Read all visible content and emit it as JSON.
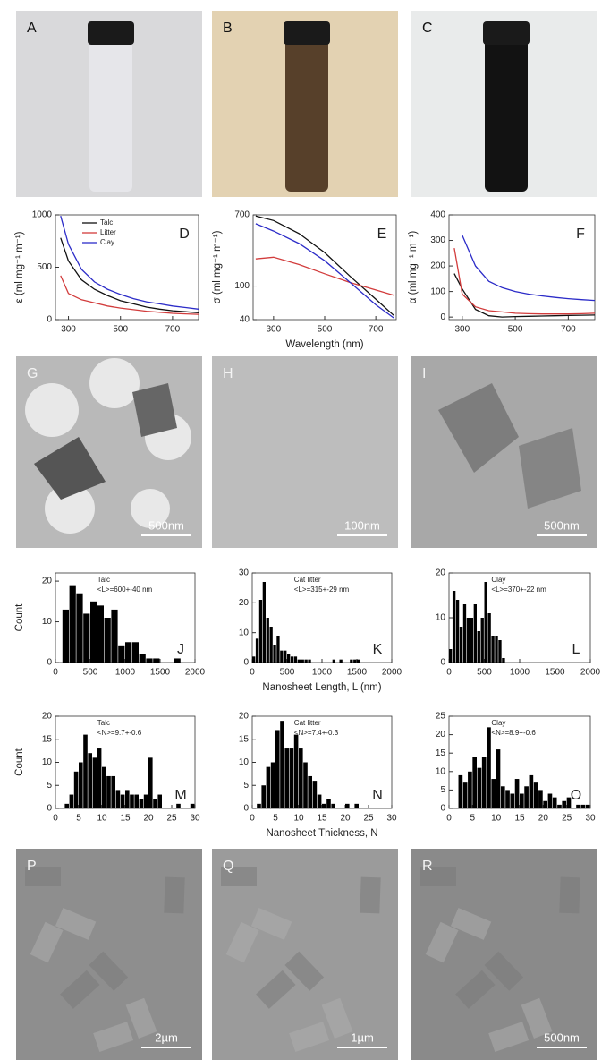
{
  "images": [
    {
      "panel": "A"
    },
    {
      "panel": "B"
    },
    {
      "panel": "C"
    },
    {
      "panel": "G",
      "scale_bar": "500nm"
    },
    {
      "panel": "H",
      "scale_bar": "100nm"
    },
    {
      "panel": "I",
      "scale_bar": "500nm"
    },
    {
      "panel": "P",
      "scale_bar": "2µm"
    },
    {
      "panel": "Q",
      "scale_bar": "1µm"
    },
    {
      "panel": "R",
      "scale_bar": "500nm"
    }
  ],
  "chart_data": [
    {
      "type": "line",
      "panel": "D",
      "y_label": "ε (ml mg⁻¹ m⁻¹)",
      "xlim": [
        250,
        800
      ],
      "xticks": [
        300,
        500,
        700
      ],
      "ylim": [
        0,
        1000
      ],
      "yticks": [
        0,
        500,
        1000
      ],
      "legend": "upper left",
      "x": [
        270,
        300,
        350,
        400,
        450,
        500,
        550,
        600,
        650,
        700,
        750,
        800
      ],
      "series": [
        {
          "name": "Talc",
          "color": "#111111",
          "values": [
            780,
            560,
            380,
            290,
            230,
            180,
            150,
            120,
            100,
            85,
            75,
            65
          ]
        },
        {
          "name": "Litter",
          "color": "#d23c3c",
          "values": [
            420,
            250,
            190,
            160,
            130,
            110,
            95,
            80,
            70,
            60,
            55,
            50
          ]
        },
        {
          "name": "Clay",
          "color": "#2c2cc8",
          "values": [
            990,
            720,
            480,
            360,
            290,
            240,
            200,
            170,
            150,
            130,
            115,
            100
          ]
        }
      ]
    },
    {
      "type": "line",
      "panel": "E",
      "y_label": "σ (ml mg⁻¹ m⁻¹)",
      "x_label": "Wavelength (nm)",
      "log_y": true,
      "xlim": [
        220,
        780
      ],
      "xticks": [
        300,
        500,
        700
      ],
      "ylim": [
        40,
        700
      ],
      "yticks": [
        40,
        100,
        700
      ],
      "x": [
        230,
        300,
        400,
        500,
        600,
        700,
        770
      ],
      "series": [
        {
          "color": "#111111",
          "values": [
            680,
            600,
            420,
            250,
            130,
            70,
            45
          ]
        },
        {
          "color": "#d23c3c",
          "values": [
            210,
            220,
            180,
            140,
            110,
            90,
            78
          ]
        },
        {
          "color": "#2c2cc8",
          "values": [
            550,
            450,
            320,
            200,
            110,
            60,
            42
          ]
        }
      ]
    },
    {
      "type": "line",
      "panel": "F",
      "y_label": "α (ml mg⁻¹ m⁻¹)",
      "xlim": [
        250,
        800
      ],
      "xticks": [
        300,
        500,
        700
      ],
      "ylim": [
        -10,
        400
      ],
      "yticks": [
        0,
        100,
        200,
        300,
        400
      ],
      "x": [
        270,
        300,
        350,
        400,
        450,
        500,
        550,
        600,
        650,
        700,
        750,
        800
      ],
      "series": [
        {
          "color": "#111111",
          "values": [
            170,
            110,
            30,
            5,
            0,
            2,
            3,
            4,
            5,
            6,
            7,
            8
          ]
        },
        {
          "color": "#d23c3c",
          "values": [
            270,
            90,
            40,
            25,
            20,
            15,
            13,
            12,
            12,
            12,
            13,
            15
          ]
        },
        {
          "color": "#2c2cc8",
          "values": [
            null,
            320,
            200,
            140,
            115,
            100,
            90,
            83,
            77,
            72,
            68,
            65
          ]
        }
      ]
    },
    {
      "type": "histogram",
      "panel": "J",
      "y_label": "Count",
      "annotations": [
        "Talc",
        "<L>=600+-40 nm"
      ],
      "color": "#000000",
      "xlim": [
        0,
        2000
      ],
      "xticks": [
        0,
        500,
        1000,
        1500,
        2000
      ],
      "ylim": [
        0,
        22
      ],
      "yticks": [
        0,
        10,
        20
      ],
      "bins": [
        0,
        100,
        200,
        300,
        400,
        500,
        600,
        700,
        800,
        900,
        1000,
        1100,
        1200,
        1300,
        1400,
        1500,
        1600,
        1700,
        1800,
        1900
      ],
      "values": [
        0,
        13,
        19,
        17,
        12,
        15,
        14,
        11,
        13,
        4,
        5,
        5,
        2,
        1,
        1,
        0,
        0,
        1,
        0
      ]
    },
    {
      "type": "histogram",
      "panel": "K",
      "x_label": "Nanosheet Length, L (nm)",
      "annotations": [
        "Cat litter",
        "<L>=315+-29 nm"
      ],
      "color": "#000000",
      "xlim": [
        0,
        2000
      ],
      "xticks": [
        0,
        500,
        1000,
        1500,
        2000
      ],
      "ylim": [
        0,
        30
      ],
      "yticks": [
        0,
        10,
        20,
        30
      ],
      "bins": [
        0,
        50,
        100,
        150,
        200,
        250,
        300,
        350,
        400,
        450,
        500,
        550,
        600,
        650,
        700,
        750,
        800,
        850,
        900,
        950,
        1000,
        1050,
        1100,
        1150,
        1200,
        1250,
        1300,
        1350,
        1400,
        1450,
        1500,
        1550,
        1600
      ],
      "values": [
        2,
        8,
        21,
        27,
        15,
        12,
        6,
        9,
        4,
        4,
        3,
        2,
        2,
        1,
        1,
        1,
        1,
        0,
        0,
        0,
        0,
        0,
        0,
        1,
        0,
        1,
        0,
        0,
        1,
        1,
        1,
        0
      ]
    },
    {
      "type": "histogram",
      "panel": "L",
      "annotations": [
        "Clay",
        "<L>=370+-22 nm"
      ],
      "color": "#000000",
      "xlim": [
        0,
        2000
      ],
      "xticks": [
        0,
        500,
        1000,
        1500,
        2000
      ],
      "ylim": [
        0,
        20
      ],
      "yticks": [
        0,
        10,
        20
      ],
      "bins": [
        0,
        50,
        100,
        150,
        200,
        250,
        300,
        350,
        400,
        450,
        500,
        550,
        600,
        650,
        700,
        750,
        800,
        850
      ],
      "values": [
        3,
        16,
        14,
        8,
        13,
        10,
        10,
        13,
        7,
        10,
        18,
        11,
        6,
        6,
        5,
        1,
        0
      ]
    },
    {
      "type": "histogram",
      "panel": "M",
      "y_label": "Count",
      "annotations": [
        "Talc",
        "<N>=9.7+-0.6"
      ],
      "color": "#000000",
      "xlim": [
        0,
        30
      ],
      "xticks": [
        0,
        5,
        10,
        15,
        20,
        25,
        30
      ],
      "ylim": [
        0,
        20
      ],
      "yticks": [
        0,
        5,
        10,
        15,
        20
      ],
      "bins": [
        2,
        3,
        4,
        5,
        6,
        7,
        8,
        9,
        10,
        11,
        12,
        13,
        14,
        15,
        16,
        17,
        18,
        19,
        20,
        21,
        22,
        23,
        24,
        25,
        26,
        27,
        28,
        29,
        30
      ],
      "values": [
        1,
        3,
        8,
        10,
        16,
        12,
        11,
        13,
        9,
        7,
        7,
        4,
        3,
        4,
        3,
        3,
        2,
        3,
        11,
        2,
        3,
        0,
        0,
        0,
        1,
        0,
        0,
        1
      ]
    },
    {
      "type": "histogram",
      "panel": "N",
      "x_label": "Nanosheet Thickness, N",
      "annotations": [
        "Cat litter",
        "<N>=7.4+-0.3"
      ],
      "color": "#000000",
      "xlim": [
        0,
        30
      ],
      "xticks": [
        0,
        5,
        10,
        15,
        20,
        25,
        30
      ],
      "ylim": [
        0,
        20
      ],
      "yticks": [
        0,
        5,
        10,
        15,
        20
      ],
      "bins": [
        1,
        2,
        3,
        4,
        5,
        6,
        7,
        8,
        9,
        10,
        11,
        12,
        13,
        14,
        15,
        16,
        17,
        18,
        19,
        20,
        21,
        22,
        23
      ],
      "values": [
        1,
        5,
        9,
        10,
        17,
        19,
        13,
        13,
        16,
        13,
        10,
        7,
        6,
        3,
        1,
        2,
        1,
        0,
        0,
        1,
        0,
        1
      ]
    },
    {
      "type": "histogram",
      "panel": "O",
      "annotations": [
        "Clay",
        "<N>=8.9+-0.6"
      ],
      "color": "#000000",
      "xlim": [
        0,
        30
      ],
      "xticks": [
        0,
        5,
        10,
        15,
        20,
        25,
        30
      ],
      "ylim": [
        0,
        25
      ],
      "yticks": [
        0,
        5,
        10,
        15,
        20,
        25
      ],
      "bins": [
        2,
        3,
        4,
        5,
        6,
        7,
        8,
        9,
        10,
        11,
        12,
        13,
        14,
        15,
        16,
        17,
        18,
        19,
        20,
        21,
        22,
        23,
        24,
        25,
        26,
        27,
        28,
        29,
        30
      ],
      "values": [
        9,
        7,
        10,
        14,
        11,
        14,
        22,
        8,
        16,
        6,
        5,
        4,
        8,
        4,
        6,
        9,
        7,
        5,
        2,
        4,
        3,
        1,
        2,
        3,
        0,
        1,
        1,
        1
      ]
    }
  ]
}
